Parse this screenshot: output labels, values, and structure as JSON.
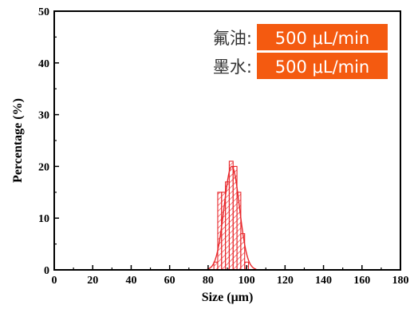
{
  "chart_data": {
    "type": "bar",
    "xlabel": "Size (μm)",
    "ylabel": "Percentage (%)",
    "xlim": [
      0,
      180
    ],
    "ylim": [
      0,
      50
    ],
    "xticks": [
      0,
      20,
      40,
      60,
      80,
      100,
      120,
      140,
      160,
      180
    ],
    "yticks": [
      0,
      10,
      20,
      30,
      40,
      50
    ],
    "bin_width": 2,
    "bins": [
      {
        "x": 84,
        "value": 1.5
      },
      {
        "x": 86,
        "value": 15.0
      },
      {
        "x": 88,
        "value": 15.0
      },
      {
        "x": 90,
        "value": 17.0
      },
      {
        "x": 92,
        "value": 21.0
      },
      {
        "x": 94,
        "value": 20.0
      },
      {
        "x": 96,
        "value": 15.0
      },
      {
        "x": 98,
        "value": 7.0
      },
      {
        "x": 100,
        "value": 1.5
      }
    ],
    "fit": {
      "type": "gaussian",
      "center": 92.3,
      "peak": 20.0,
      "sigma": 4.0
    },
    "grid": false,
    "color": "#e8262a",
    "annotations": [
      {
        "label": "氟油:",
        "value": "500 μL/min"
      },
      {
        "label": "墨水:",
        "value": "500 μL/min"
      }
    ],
    "annotation_color": "#f45a10"
  }
}
